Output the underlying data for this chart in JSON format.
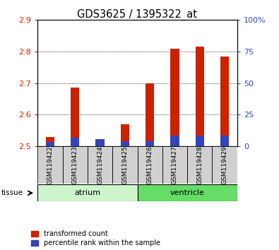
{
  "title": "GDS3625 / 1395322_at",
  "samples": [
    "GSM119422",
    "GSM119423",
    "GSM119424",
    "GSM119425",
    "GSM119426",
    "GSM119427",
    "GSM119428",
    "GSM119429"
  ],
  "red_values": [
    2.53,
    2.685,
    2.505,
    2.57,
    2.7,
    2.81,
    2.815,
    2.785
  ],
  "blue_values": [
    2.513,
    2.527,
    2.523,
    2.515,
    2.515,
    2.533,
    2.533,
    2.533
  ],
  "base_value": 2.5,
  "ylim": [
    2.5,
    2.9
  ],
  "yticks_left": [
    2.5,
    2.6,
    2.7,
    2.8,
    2.9
  ],
  "yticks_right": [
    0,
    25,
    50,
    75,
    100
  ],
  "ytick_labels_left": [
    "2.5",
    "2.6",
    "2.7",
    "2.8",
    "2.9"
  ],
  "ytick_labels_right": [
    "0",
    "25",
    "50",
    "75",
    "100%"
  ],
  "groups": [
    {
      "label": "atrium",
      "start": 0,
      "end": 3,
      "color": "#ccf5cc"
    },
    {
      "label": "ventricle",
      "start": 4,
      "end": 7,
      "color": "#66dd66"
    }
  ],
  "tissue_label": "tissue",
  "bar_bg_color": "#d0d0d0",
  "red_color": "#cc2200",
  "blue_color": "#3344bb",
  "legend_red": "transformed count",
  "legend_blue": "percentile rank within the sample",
  "bar_width": 0.35
}
